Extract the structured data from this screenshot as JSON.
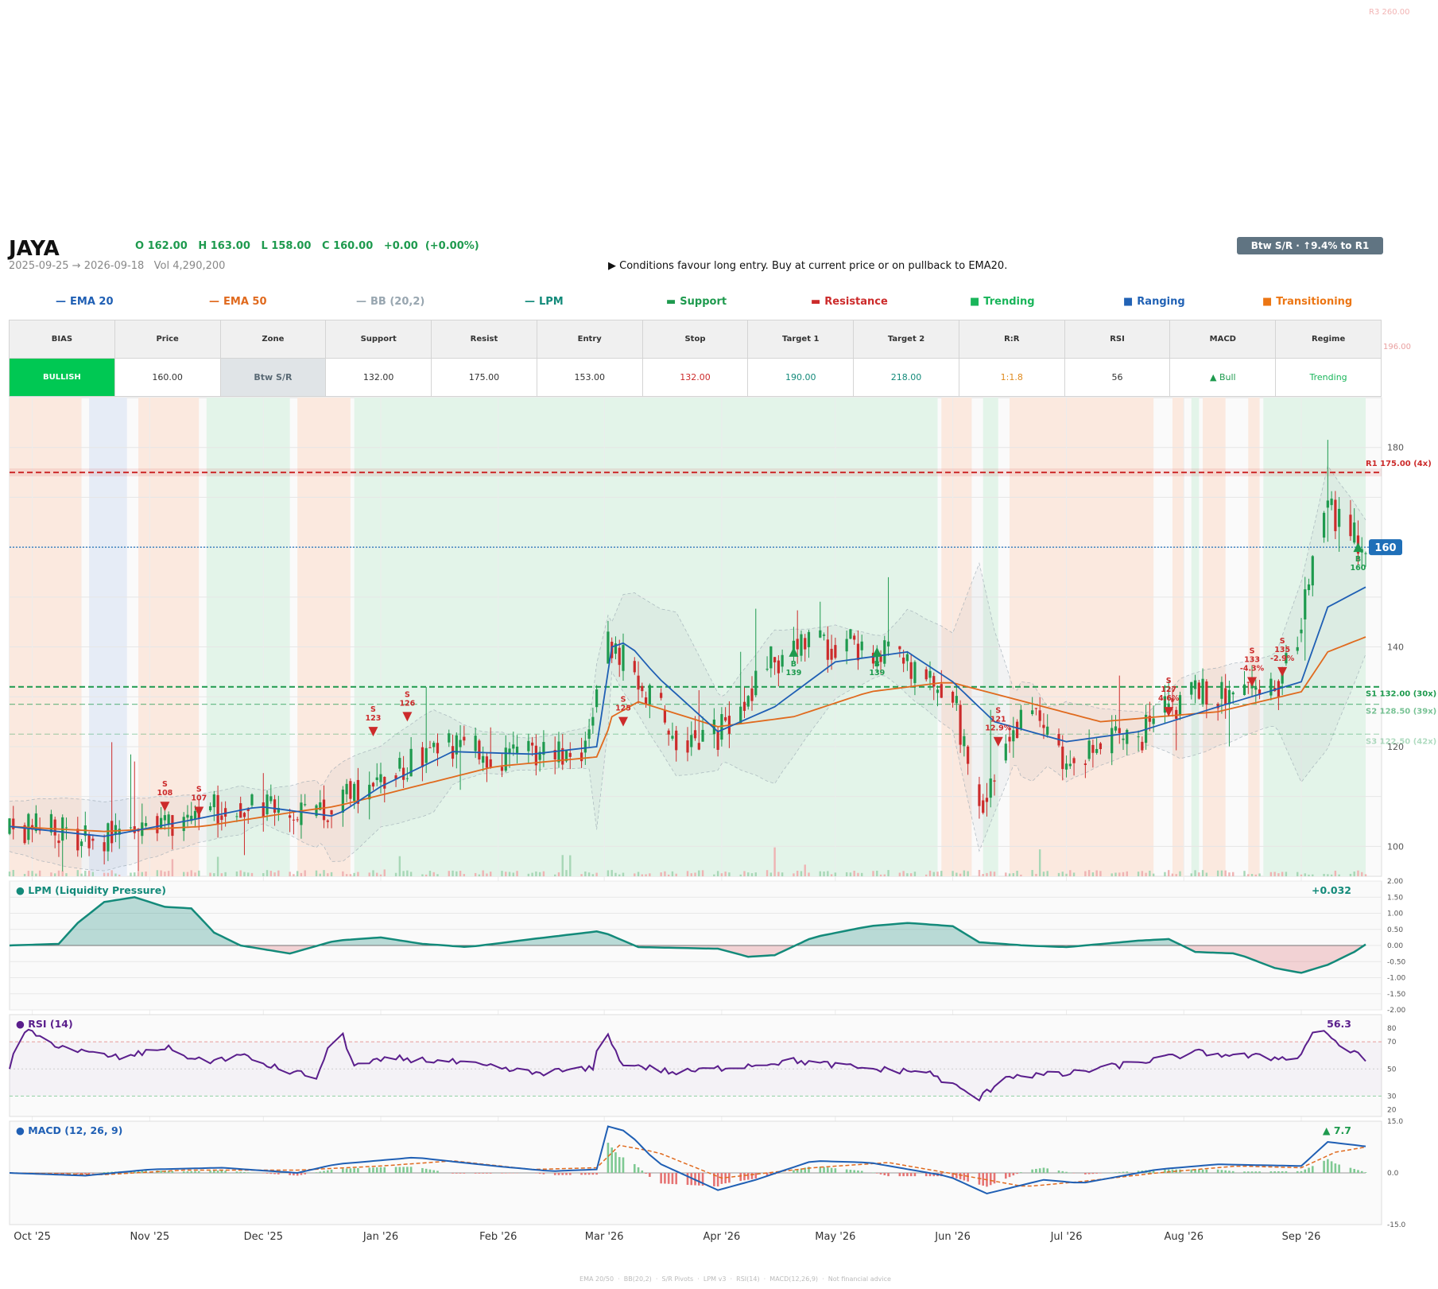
{
  "header": {
    "ticker": "JAYA",
    "ohlc": "O 162.00   H 163.00   L 158.00   C 160.00   +0.00  (+0.00%)",
    "date_range": "2025-09-25 → 2026-09-18",
    "volume": "Vol 4,290,200",
    "advice": "▶  Conditions favour long entry. Buy at current price or on pullback to EMA20.",
    "badge": "Btw S/R  ·  ↑9.4% to R1"
  },
  "legend": [
    {
      "label": "EMA 20",
      "color": "#1f5fb4",
      "glyph": "—"
    },
    {
      "label": "EMA 50",
      "color": "#e06a1e",
      "glyph": "—"
    },
    {
      "label": "BB (20,2)",
      "color": "#98a6b0",
      "glyph": "—"
    },
    {
      "label": "LPM",
      "color": "#138a7a",
      "glyph": "—"
    },
    {
      "label": "Support",
      "color": "#1e9a4e",
      "glyph": "▬"
    },
    {
      "label": "Resistance",
      "color": "#cc2b2b",
      "glyph": "▬"
    },
    {
      "label": "Trending",
      "color": "#19b55a",
      "glyph": "■"
    },
    {
      "label": "Ranging",
      "color": "#2162b5",
      "glyph": "■"
    },
    {
      "label": "Transitioning",
      "color": "#ec7614",
      "glyph": "■"
    }
  ],
  "summary": {
    "headers": [
      "BIAS",
      "Price",
      "Zone",
      "Support",
      "Resist",
      "Entry",
      "Stop",
      "Target 1",
      "Target 2",
      "R:R",
      "RSI",
      "MACD",
      "Regime"
    ],
    "values": [
      "BULLISH",
      "160.00",
      "Btw S/R",
      "132.00",
      "175.00",
      "153.00",
      "132.00",
      "190.00",
      "218.00",
      "1:1.8",
      "56",
      "▲ Bull",
      "Trending"
    ]
  },
  "colors": {
    "up": "#1e9a4e",
    "down": "#cc2b2b",
    "ema20": "#1f5fb4",
    "ema50": "#e06a1e",
    "bb": "#98a6b0",
    "lpm": "#138a7a",
    "rsi": "#5a1e8c",
    "macd": "#1f5fb4",
    "signal": "#e06a1e",
    "trending_zone": "#e3f4e9",
    "ranging_zone": "#e6ecf6",
    "transition_zone": "#fbe9df",
    "bull_badge": "#00c853",
    "price_tag": "#1f6fb8"
  },
  "chart_data": {
    "type": "candlestick",
    "x_range": [
      "2025-09-25",
      "2026-09-18"
    ],
    "x_ticks": [
      {
        "date": "2025-10-01",
        "label": "Oct '25"
      },
      {
        "date": "2025-11-01",
        "label": "Nov '25"
      },
      {
        "date": "2025-12-01",
        "label": "Dec '25"
      },
      {
        "date": "2026-01-01",
        "label": "Jan '26"
      },
      {
        "date": "2026-02-01",
        "label": "Feb '26"
      },
      {
        "date": "2026-03-01",
        "label": "Mar '26"
      },
      {
        "date": "2026-04-01",
        "label": "Apr '26"
      },
      {
        "date": "2026-05-01",
        "label": "May '26"
      },
      {
        "date": "2026-06-01",
        "label": "Jun '26"
      },
      {
        "date": "2026-07-01",
        "label": "Jul '26"
      },
      {
        "date": "2026-08-01",
        "label": "Aug '26"
      },
      {
        "date": "2026-09-01",
        "label": "Sep '26"
      }
    ],
    "price": {
      "ylim": [
        94,
        190
      ],
      "y_ticks": [
        100,
        120,
        140,
        180
      ],
      "candles_from": "2025-09-25",
      "candles_to": "2026-09-18",
      "candle_keypoints": [
        [
          "2025-09-25",
          104
        ],
        [
          "2025-10-20",
          102
        ],
        [
          "2025-11-10",
          106
        ],
        [
          "2025-11-25",
          109
        ],
        [
          "2025-12-15",
          105
        ],
        [
          "2025-12-20",
          110
        ],
        [
          "2026-01-01",
          113
        ],
        [
          "2026-01-15",
          121
        ],
        [
          "2026-02-01",
          118
        ],
        [
          "2026-02-25",
          120
        ],
        [
          "2026-03-01",
          142
        ],
        [
          "2026-03-10",
          133
        ],
        [
          "2026-03-20",
          122
        ],
        [
          "2026-03-31",
          122
        ],
        [
          "2026-04-15",
          138
        ],
        [
          "2026-05-01",
          141
        ],
        [
          "2026-05-15",
          138
        ],
        [
          "2026-06-01",
          130
        ],
        [
          "2026-06-08",
          108
        ],
        [
          "2026-06-20",
          128
        ],
        [
          "2026-07-01",
          118
        ],
        [
          "2026-07-20",
          122
        ],
        [
          "2026-08-01",
          130
        ],
        [
          "2026-08-25",
          131
        ],
        [
          "2026-09-01",
          145
        ],
        [
          "2026-09-08",
          168
        ],
        [
          "2026-09-18",
          160
        ]
      ],
      "ema20_keypoints": [
        [
          "2025-09-25",
          104
        ],
        [
          "2025-10-20",
          102
        ],
        [
          "2025-11-10",
          105
        ],
        [
          "2025-11-30",
          108
        ],
        [
          "2025-12-20",
          106
        ],
        [
          "2026-01-01",
          112
        ],
        [
          "2026-01-20",
          119
        ],
        [
          "2026-02-10",
          118.5
        ],
        [
          "2026-02-27",
          120
        ],
        [
          "2026-03-03",
          140
        ],
        [
          "2026-03-07",
          141
        ],
        [
          "2026-03-15",
          134
        ],
        [
          "2026-03-31",
          123
        ],
        [
          "2026-04-15",
          128
        ],
        [
          "2026-05-01",
          137
        ],
        [
          "2026-05-20",
          139
        ],
        [
          "2026-06-01",
          133
        ],
        [
          "2026-06-12",
          125
        ],
        [
          "2026-07-01",
          121
        ],
        [
          "2026-07-20",
          123
        ],
        [
          "2026-08-10",
          128
        ],
        [
          "2026-09-01",
          133
        ],
        [
          "2026-09-08",
          148
        ],
        [
          "2026-09-18",
          152
        ]
      ],
      "ema50_keypoints": [
        [
          "2025-09-25",
          104
        ],
        [
          "2025-10-20",
          103
        ],
        [
          "2025-11-15",
          104
        ],
        [
          "2025-12-10",
          107
        ],
        [
          "2025-12-20",
          108
        ],
        [
          "2026-01-10",
          112
        ],
        [
          "2026-01-31",
          116
        ],
        [
          "2026-02-28",
          118
        ],
        [
          "2026-03-03",
          126
        ],
        [
          "2026-03-10",
          129
        ],
        [
          "2026-03-31",
          124
        ],
        [
          "2026-04-20",
          126
        ],
        [
          "2026-05-10",
          131
        ],
        [
          "2026-05-31",
          133
        ],
        [
          "2026-06-20",
          129
        ],
        [
          "2026-07-10",
          125
        ],
        [
          "2026-08-10",
          127
        ],
        [
          "2026-09-01",
          131
        ],
        [
          "2026-09-08",
          139
        ],
        [
          "2026-09-18",
          142
        ]
      ],
      "support_levels": [
        {
          "label": "S1 132.00 (30x)",
          "value": 132
        },
        {
          "label": "S2 128.50 (39x)",
          "value": 128.5
        },
        {
          "label": "S3 122.50 (42x)",
          "value": 122.5
        }
      ],
      "resistance_levels": [
        {
          "label": "R1 175.00 (4x)",
          "value": 175
        },
        {
          "label": "196.00",
          "value": 196
        },
        {
          "label": "R3 260.00",
          "value": 260
        }
      ],
      "current_price": 160,
      "current_price_label": "160",
      "signals": [
        {
          "date": "2025-11-05",
          "value": 108,
          "type": "sell",
          "lines": [
            "S",
            "108"
          ]
        },
        {
          "date": "2025-11-14",
          "value": 107,
          "type": "sell",
          "lines": [
            "S",
            "107"
          ]
        },
        {
          "date": "2025-12-30",
          "value": 123,
          "type": "sell",
          "lines": [
            "S",
            "123"
          ]
        },
        {
          "date": "2026-01-08",
          "value": 126,
          "type": "sell",
          "lines": [
            "S",
            "126"
          ]
        },
        {
          "date": "2026-03-06",
          "value": 125,
          "type": "sell",
          "lines": [
            "S",
            "125"
          ]
        },
        {
          "date": "2026-04-20",
          "value": 139,
          "type": "buy",
          "lines": [
            "B",
            "139"
          ]
        },
        {
          "date": "2026-05-12",
          "value": 139,
          "type": "buy",
          "lines": [
            "B",
            "139"
          ]
        },
        {
          "date": "2026-06-13",
          "value": 121,
          "type": "sell",
          "lines": [
            "S",
            "121",
            "12.9%"
          ]
        },
        {
          "date": "2026-07-28",
          "value": 127,
          "type": "sell",
          "lines": [
            "S",
            "127",
            "4.6%"
          ]
        },
        {
          "date": "2026-08-19",
          "value": 133,
          "type": "sell",
          "lines": [
            "S",
            "133",
            "-4.3%"
          ]
        },
        {
          "date": "2026-08-27",
          "value": 135,
          "type": "sell",
          "lines": [
            "S",
            "135",
            "-2.9%"
          ]
        },
        {
          "date": "2026-09-16",
          "value": 160,
          "type": "buy",
          "lines": [
            "B",
            "160"
          ]
        }
      ],
      "regime_zones": [
        {
          "from": "2025-09-25",
          "to": "2025-10-14",
          "type": "transition"
        },
        {
          "from": "2025-10-16",
          "to": "2025-10-26",
          "type": "ranging"
        },
        {
          "from": "2025-10-29",
          "to": "2025-11-14",
          "type": "transition"
        },
        {
          "from": "2025-11-16",
          "to": "2025-12-08",
          "type": "trending"
        },
        {
          "from": "2025-12-10",
          "to": "2025-12-24",
          "type": "transition"
        },
        {
          "from": "2025-12-25",
          "to": "2026-05-28",
          "type": "trending"
        },
        {
          "from": "2026-05-29",
          "to": "2026-06-06",
          "type": "transition"
        },
        {
          "from": "2026-06-09",
          "to": "2026-06-13",
          "type": "trending"
        },
        {
          "from": "2026-06-16",
          "to": "2026-07-24",
          "type": "transition"
        },
        {
          "from": "2026-07-29",
          "to": "2026-08-01",
          "type": "transition"
        },
        {
          "from": "2026-08-03",
          "to": "2026-08-05",
          "type": "trending"
        },
        {
          "from": "2026-08-06",
          "to": "2026-08-12",
          "type": "transition"
        },
        {
          "from": "2026-08-18",
          "to": "2026-08-21",
          "type": "transition"
        },
        {
          "from": "2026-08-22",
          "to": "2026-09-18",
          "type": "trending"
        }
      ]
    },
    "lpm": {
      "title": "● LPM (Liquidity Pressure)",
      "value_label": "+0.032",
      "ylim": [
        -2,
        2
      ],
      "y_ticks": [
        2,
        1.5,
        1,
        0.5,
        0,
        -0.5,
        -1,
        -1.5,
        -2
      ],
      "y_tick_labels": [
        "2.00",
        "1.50",
        "1.00",
        "0.50",
        "0.00",
        "-0.50",
        "-1.00",
        "-1.50",
        "-2.00"
      ],
      "keypoints": [
        [
          "2025-09-25",
          0
        ],
        [
          "2025-10-08",
          0.05
        ],
        [
          "2025-10-13",
          0.7
        ],
        [
          "2025-10-20",
          1.35
        ],
        [
          "2025-10-28",
          1.5
        ],
        [
          "2025-11-05",
          1.2
        ],
        [
          "2025-11-12",
          1.15
        ],
        [
          "2025-11-18",
          0.4
        ],
        [
          "2025-11-25",
          0
        ],
        [
          "2025-12-08",
          -0.25
        ],
        [
          "2025-12-20",
          0.15
        ],
        [
          "2026-01-01",
          0.25
        ],
        [
          "2026-01-12",
          0.05
        ],
        [
          "2026-01-24",
          -0.05
        ],
        [
          "2026-02-10",
          0.2
        ],
        [
          "2026-02-28",
          0.45
        ],
        [
          "2026-03-10",
          -0.05
        ],
        [
          "2026-03-31",
          -0.1
        ],
        [
          "2026-04-08",
          -0.35
        ],
        [
          "2026-04-15",
          -0.3
        ],
        [
          "2026-04-25",
          0.25
        ],
        [
          "2026-05-10",
          0.6
        ],
        [
          "2026-05-20",
          0.7
        ],
        [
          "2026-06-01",
          0.6
        ],
        [
          "2026-06-08",
          0.1
        ],
        [
          "2026-06-20",
          0
        ],
        [
          "2026-07-01",
          -0.05
        ],
        [
          "2026-07-20",
          0.15
        ],
        [
          "2026-07-28",
          0.2
        ],
        [
          "2026-08-04",
          -0.2
        ],
        [
          "2026-08-15",
          -0.25
        ],
        [
          "2026-08-25",
          -0.7
        ],
        [
          "2026-09-01",
          -0.85
        ],
        [
          "2026-09-08",
          -0.6
        ],
        [
          "2026-09-15",
          -0.2
        ],
        [
          "2026-09-18",
          0.032
        ]
      ]
    },
    "rsi": {
      "title": "● RSI (14)",
      "value_label": "56.3",
      "ylim": [
        15,
        90
      ],
      "y_ticks": [
        80,
        70,
        50,
        30,
        20
      ],
      "overbought": 70,
      "oversold": 30,
      "keypoints": [
        [
          "2025-09-25",
          50
        ],
        [
          "2025-09-28",
          80
        ],
        [
          "2025-10-05",
          70
        ],
        [
          "2025-10-15",
          62
        ],
        [
          "2025-10-25",
          58
        ],
        [
          "2025-11-05",
          66
        ],
        [
          "2025-11-15",
          55
        ],
        [
          "2025-11-25",
          60
        ],
        [
          "2025-12-05",
          50
        ],
        [
          "2025-12-15",
          44
        ],
        [
          "2025-12-21",
          82
        ],
        [
          "2025-12-25",
          52
        ],
        [
          "2026-01-05",
          58
        ],
        [
          "2026-01-20",
          55
        ],
        [
          "2026-02-10",
          47
        ],
        [
          "2026-02-26",
          50
        ],
        [
          "2026-03-01",
          85
        ],
        [
          "2026-03-05",
          55
        ],
        [
          "2026-03-20",
          47
        ],
        [
          "2026-04-05",
          52
        ],
        [
          "2026-04-20",
          56
        ],
        [
          "2026-05-10",
          50
        ],
        [
          "2026-05-25",
          48
        ],
        [
          "2026-06-08",
          28
        ],
        [
          "2026-06-15",
          45
        ],
        [
          "2026-07-01",
          46
        ],
        [
          "2026-07-20",
          55
        ],
        [
          "2026-08-05",
          62
        ],
        [
          "2026-08-25",
          58
        ],
        [
          "2026-09-01",
          60
        ],
        [
          "2026-09-05",
          84
        ],
        [
          "2026-09-10",
          70
        ],
        [
          "2026-09-18",
          56.3
        ]
      ]
    },
    "macd": {
      "title": "● MACD (12, 26, 9)",
      "value_label": "▲ 7.7",
      "ylim": [
        -15,
        15
      ],
      "y_ticks": [
        15,
        0,
        -15
      ],
      "y_tick_labels": [
        "15.0",
        "0.0",
        "-15.0"
      ],
      "macd_keypoints": [
        [
          "2025-09-25",
          0
        ],
        [
          "2025-10-15",
          -0.8
        ],
        [
          "2025-11-01",
          1
        ],
        [
          "2025-11-20",
          1.5
        ],
        [
          "2025-12-10",
          0
        ],
        [
          "2025-12-20",
          2.5
        ],
        [
          "2026-01-10",
          4.5
        ],
        [
          "2026-01-31",
          2
        ],
        [
          "2026-02-15",
          0.5
        ],
        [
          "2026-02-27",
          1
        ],
        [
          "2026-03-02",
          13.5
        ],
        [
          "2026-03-07",
          12
        ],
        [
          "2026-03-15",
          3
        ],
        [
          "2026-03-31",
          -5
        ],
        [
          "2026-04-10",
          -2
        ],
        [
          "2026-04-25",
          3.5
        ],
        [
          "2026-05-10",
          3
        ],
        [
          "2026-05-31",
          -1
        ],
        [
          "2026-06-10",
          -6
        ],
        [
          "2026-06-25",
          -2
        ],
        [
          "2026-07-05",
          -3
        ],
        [
          "2026-07-25",
          1
        ],
        [
          "2026-08-10",
          2.5
        ],
        [
          "2026-09-01",
          2
        ],
        [
          "2026-09-08",
          9
        ],
        [
          "2026-09-18",
          7.7
        ]
      ],
      "signal_keypoints": [
        [
          "2025-09-25",
          0
        ],
        [
          "2025-10-20",
          -0.5
        ],
        [
          "2025-11-10",
          0.8
        ],
        [
          "2025-12-10",
          0.8
        ],
        [
          "2026-01-01",
          2
        ],
        [
          "2026-01-20",
          3.5
        ],
        [
          "2026-02-10",
          1
        ],
        [
          "2026-02-27",
          1.5
        ],
        [
          "2026-03-05",
          8
        ],
        [
          "2026-03-15",
          6
        ],
        [
          "2026-04-01",
          -1.5
        ],
        [
          "2026-04-25",
          1.5
        ],
        [
          "2026-05-15",
          3
        ],
        [
          "2026-06-05",
          -1
        ],
        [
          "2026-06-20",
          -4
        ],
        [
          "2026-07-05",
          -2.5
        ],
        [
          "2026-07-25",
          0
        ],
        [
          "2026-08-15",
          2
        ],
        [
          "2026-09-01",
          1.5
        ],
        [
          "2026-09-10",
          6
        ],
        [
          "2026-09-18",
          7.5
        ]
      ]
    }
  },
  "footer": "EMA 20/50  ·  BB(20,2)  ·  S/R Pivots  ·  LPM v3  ·  RSI(14)  ·  MACD(12,26,9)  ·  Not financial advice"
}
